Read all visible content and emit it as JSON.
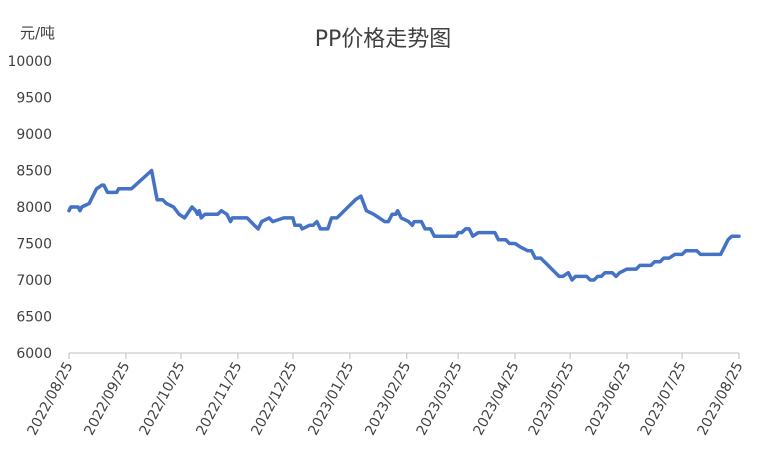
{
  "chart_data": {
    "type": "line",
    "title": "PP价格走势图",
    "unit_label": "元/吨",
    "xlabel": "",
    "ylabel": "",
    "ylim": [
      6000,
      10000
    ],
    "y_ticks": [
      6000,
      6500,
      7000,
      7500,
      8000,
      8500,
      9000,
      9500,
      10000
    ],
    "x_range": [
      "2022-08-25",
      "2023-08-25"
    ],
    "x_tick_labels": [
      "2022/08/25",
      "2022/09/25",
      "2022/10/25",
      "2022/11/25",
      "2022/12/25",
      "2023/01/25",
      "2023/02/25",
      "2023/03/25",
      "2023/04/25",
      "2023/05/25",
      "2023/06/25",
      "2023/07/25",
      "2023/08/25"
    ],
    "grid": false,
    "legend": "none",
    "line_color": "#4472C4",
    "series": [
      {
        "points": [
          [
            "2022-08-25",
            7950
          ],
          [
            "2022-08-26",
            8000
          ],
          [
            "2022-08-30",
            8000
          ],
          [
            "2022-08-31",
            7950
          ],
          [
            "2022-09-01",
            8000
          ],
          [
            "2022-09-05",
            8050
          ],
          [
            "2022-09-07",
            8150
          ],
          [
            "2022-09-09",
            8250
          ],
          [
            "2022-09-12",
            8300
          ],
          [
            "2022-09-13",
            8300
          ],
          [
            "2022-09-15",
            8200
          ],
          [
            "2022-09-20",
            8200
          ],
          [
            "2022-09-21",
            8250
          ],
          [
            "2022-09-28",
            8250
          ],
          [
            "2022-10-09",
            8500
          ],
          [
            "2022-10-12",
            8100
          ],
          [
            "2022-10-15",
            8100
          ],
          [
            "2022-10-17",
            8050
          ],
          [
            "2022-10-21",
            8000
          ],
          [
            "2022-10-24",
            7900
          ],
          [
            "2022-10-27",
            7850
          ],
          [
            "2022-10-31",
            8000
          ],
          [
            "2022-11-02",
            7950
          ],
          [
            "2022-11-03",
            7900
          ],
          [
            "2022-11-04",
            7950
          ],
          [
            "2022-11-05",
            7850
          ],
          [
            "2022-11-07",
            7900
          ],
          [
            "2022-11-14",
            7900
          ],
          [
            "2022-11-16",
            7950
          ],
          [
            "2022-11-19",
            7900
          ],
          [
            "2022-11-21",
            7800
          ],
          [
            "2022-11-22",
            7850
          ],
          [
            "2022-11-30",
            7850
          ],
          [
            "2022-12-04",
            7750
          ],
          [
            "2022-12-06",
            7700
          ],
          [
            "2022-12-08",
            7800
          ],
          [
            "2022-12-12",
            7850
          ],
          [
            "2022-12-14",
            7800
          ],
          [
            "2022-12-20",
            7850
          ],
          [
            "2022-12-25",
            7850
          ],
          [
            "2022-12-26",
            7750
          ],
          [
            "2022-12-29",
            7750
          ],
          [
            "2022-12-30",
            7700
          ],
          [
            "2023-01-03",
            7750
          ],
          [
            "2023-01-05",
            7750
          ],
          [
            "2023-01-07",
            7800
          ],
          [
            "2023-01-09",
            7700
          ],
          [
            "2023-01-13",
            7700
          ],
          [
            "2023-01-15",
            7850
          ],
          [
            "2023-01-18",
            7850
          ],
          [
            "2023-01-20",
            7900
          ],
          [
            "2023-01-28",
            8100
          ],
          [
            "2023-01-31",
            8150
          ],
          [
            "2023-02-03",
            7950
          ],
          [
            "2023-02-07",
            7900
          ],
          [
            "2023-02-10",
            7850
          ],
          [
            "2023-02-13",
            7800
          ],
          [
            "2023-02-15",
            7800
          ],
          [
            "2023-02-17",
            7900
          ],
          [
            "2023-02-19",
            7900
          ],
          [
            "2023-02-20",
            7950
          ],
          [
            "2023-02-22",
            7850
          ],
          [
            "2023-02-26",
            7800
          ],
          [
            "2023-02-28",
            7750
          ],
          [
            "2023-03-01",
            7800
          ],
          [
            "2023-03-05",
            7800
          ],
          [
            "2023-03-07",
            7700
          ],
          [
            "2023-03-10",
            7700
          ],
          [
            "2023-03-12",
            7600
          ],
          [
            "2023-03-24",
            7600
          ],
          [
            "2023-03-25",
            7650
          ],
          [
            "2023-03-27",
            7650
          ],
          [
            "2023-03-29",
            7700
          ],
          [
            "2023-03-31",
            7700
          ],
          [
            "2023-04-02",
            7600
          ],
          [
            "2023-04-05",
            7650
          ],
          [
            "2023-04-12",
            7650
          ],
          [
            "2023-04-14",
            7650
          ],
          [
            "2023-04-16",
            7550
          ],
          [
            "2023-04-20",
            7550
          ],
          [
            "2023-04-22",
            7500
          ],
          [
            "2023-04-25",
            7500
          ],
          [
            "2023-04-28",
            7450
          ],
          [
            "2023-05-02",
            7400
          ],
          [
            "2023-05-04",
            7400
          ],
          [
            "2023-05-06",
            7300
          ],
          [
            "2023-05-09",
            7300
          ],
          [
            "2023-05-11",
            7250
          ],
          [
            "2023-05-13",
            7200
          ],
          [
            "2023-05-15",
            7150
          ],
          [
            "2023-05-17",
            7100
          ],
          [
            "2023-05-19",
            7050
          ],
          [
            "2023-05-21",
            7050
          ],
          [
            "2023-05-24",
            7100
          ],
          [
            "2023-05-26",
            7000
          ],
          [
            "2023-05-28",
            7050
          ],
          [
            "2023-06-03",
            7050
          ],
          [
            "2023-06-05",
            7000
          ],
          [
            "2023-06-07",
            7000
          ],
          [
            "2023-06-09",
            7050
          ],
          [
            "2023-06-11",
            7050
          ],
          [
            "2023-06-13",
            7100
          ],
          [
            "2023-06-17",
            7100
          ],
          [
            "2023-06-19",
            7050
          ],
          [
            "2023-06-21",
            7100
          ],
          [
            "2023-06-25",
            7150
          ],
          [
            "2023-06-30",
            7150
          ],
          [
            "2023-07-02",
            7200
          ],
          [
            "2023-07-08",
            7200
          ],
          [
            "2023-07-10",
            7250
          ],
          [
            "2023-07-13",
            7250
          ],
          [
            "2023-07-15",
            7300
          ],
          [
            "2023-07-18",
            7300
          ],
          [
            "2023-07-21",
            7350
          ],
          [
            "2023-07-25",
            7350
          ],
          [
            "2023-07-27",
            7400
          ],
          [
            "2023-08-02",
            7400
          ],
          [
            "2023-08-04",
            7350
          ],
          [
            "2023-08-15",
            7350
          ],
          [
            "2023-08-17",
            7450
          ],
          [
            "2023-08-19",
            7550
          ],
          [
            "2023-08-21",
            7600
          ],
          [
            "2023-08-25",
            7600
          ]
        ]
      }
    ]
  }
}
